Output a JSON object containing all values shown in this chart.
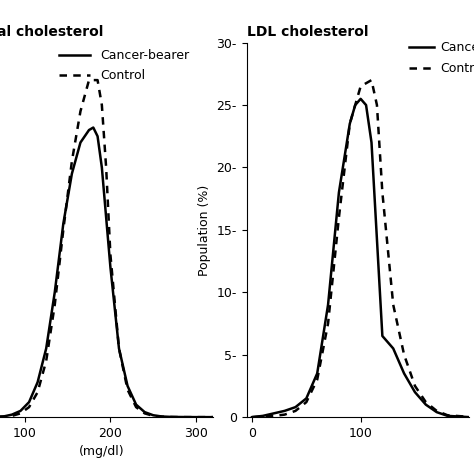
{
  "title_left": "Total cholesterol",
  "title_right": "LDL cholesterol",
  "xlabel_left": "(mg/dl)",
  "ylabel": "Population (%)",
  "legend_solid": "Cancer-bearer",
  "legend_dotted": "Control",
  "tc_xlim": [
    60,
    320
  ],
  "tc_xticks": [
    100,
    200,
    300
  ],
  "ldl_xlim": [
    -5,
    200
  ],
  "ldl_xticks": [
    0,
    100
  ],
  "ldl_yticks": [
    0,
    5,
    10,
    15,
    20,
    25,
    30
  ],
  "tc_cancer_x": [
    60,
    75,
    85,
    95,
    105,
    115,
    125,
    135,
    145,
    155,
    165,
    175,
    180,
    185,
    190,
    200,
    210,
    220,
    230,
    240,
    250,
    260,
    270,
    280,
    300,
    320
  ],
  "tc_cancer_y": [
    0,
    0.05,
    0.2,
    0.5,
    1.2,
    2.8,
    5.5,
    10.0,
    15.5,
    19.5,
    22.0,
    23.0,
    23.2,
    22.5,
    20.0,
    12.0,
    5.5,
    2.5,
    1.0,
    0.4,
    0.15,
    0.05,
    0.02,
    0.01,
    0,
    0
  ],
  "tc_control_x": [
    60,
    75,
    85,
    95,
    105,
    115,
    125,
    135,
    145,
    155,
    165,
    175,
    185,
    190,
    195,
    200,
    210,
    220,
    230,
    240,
    250,
    260,
    270,
    280,
    300,
    320
  ],
  "tc_control_y": [
    0,
    0.05,
    0.1,
    0.3,
    0.8,
    2.0,
    4.5,
    9.0,
    15.0,
    20.5,
    24.5,
    27.0,
    27.0,
    25.0,
    20.0,
    13.0,
    5.5,
    2.2,
    0.8,
    0.3,
    0.1,
    0.04,
    0.01,
    0,
    0,
    0
  ],
  "ldl_cancer_x": [
    0,
    10,
    20,
    30,
    40,
    50,
    60,
    70,
    80,
    90,
    95,
    100,
    105,
    110,
    120,
    130,
    140,
    150,
    160,
    170,
    180,
    200
  ],
  "ldl_cancer_y": [
    0,
    0.1,
    0.3,
    0.5,
    0.8,
    1.5,
    3.5,
    9.0,
    18.0,
    23.5,
    25.0,
    25.5,
    25.0,
    22.0,
    6.5,
    5.5,
    3.5,
    2.0,
    1.0,
    0.4,
    0.1,
    0.0
  ],
  "ldl_control_x": [
    0,
    10,
    20,
    30,
    40,
    50,
    60,
    70,
    80,
    90,
    100,
    110,
    115,
    120,
    130,
    140,
    150,
    160,
    170,
    180,
    200
  ],
  "ldl_control_y": [
    0,
    0.05,
    0.1,
    0.2,
    0.5,
    1.2,
    3.0,
    7.5,
    16.0,
    23.5,
    26.5,
    27.0,
    25.0,
    18.0,
    9.0,
    5.0,
    2.5,
    1.2,
    0.5,
    0.15,
    0.02
  ],
  "line_color": "#000000",
  "bg_color": "#ffffff",
  "title_fontsize": 10,
  "label_fontsize": 9,
  "tick_fontsize": 9,
  "legend_fontsize": 9,
  "line_width": 1.8
}
